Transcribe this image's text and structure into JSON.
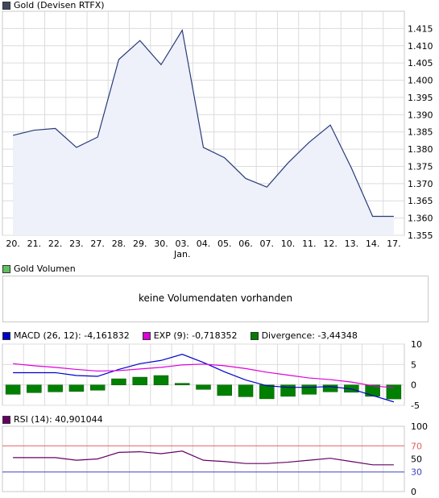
{
  "colors": {
    "gold_line": "#283c78",
    "gold_fill": "#eef0fa",
    "grid": "#dcdcdc",
    "frame": "#c8c8c8",
    "macd": "#0000cc",
    "exp": "#dd00dd",
    "divergence": "#008000",
    "rsi": "#660066",
    "rsi_70": "#e06060",
    "rsi_30": "#4040c0",
    "gold_swatch": "#404860",
    "vol_swatch": "#60c060",
    "rsi_swatch": "#660066"
  },
  "price_panel": {
    "legend": "Gold (Devisen RTFX)",
    "month_label": "Jan."
  },
  "volume_panel": {
    "legend": "Gold Volumen",
    "message": "keine Volumendaten vorhanden"
  },
  "macd_panel": {
    "macd_legend": "MACD (26, 12): -4,161832",
    "exp_legend": "EXP (9): -0,718352",
    "div_legend": "Divergence: -3,44348"
  },
  "rsi_panel": {
    "legend": "RSI (14): 40,901044"
  },
  "chart_data": [
    {
      "type": "area",
      "title": "Gold (Devisen RTFX)",
      "categories": [
        "20.",
        "21.",
        "22.",
        "23.",
        "27.",
        "28.",
        "29.",
        "30.",
        "03.",
        "04.",
        "05.",
        "06.",
        "07.",
        "10.",
        "11.",
        "12.",
        "13.",
        "14.",
        "17."
      ],
      "series": [
        {
          "name": "Gold (Devisen RTFX)",
          "values": [
            1.384,
            1.3855,
            1.386,
            1.3805,
            1.3835,
            1.406,
            1.4115,
            1.4045,
            1.4145,
            1.3805,
            1.3775,
            1.3715,
            1.369,
            1.376,
            1.382,
            1.387,
            1.3745,
            1.3605,
            1.3605
          ]
        }
      ],
      "ylim": [
        1.355,
        1.42
      ],
      "y_ticks": [
        "1.355",
        "1.360",
        "1.365",
        "1.370",
        "1.375",
        "1.380",
        "1.385",
        "1.390",
        "1.395",
        "1.400",
        "1.405",
        "1.410",
        "1.415"
      ],
      "x_group_label": "Jan.",
      "grid": true
    },
    {
      "type": "line",
      "title": "MACD",
      "categories": [
        "20.",
        "21.",
        "22.",
        "23.",
        "27.",
        "28.",
        "29.",
        "30.",
        "03.",
        "04.",
        "05.",
        "06.",
        "07.",
        "10.",
        "11.",
        "12.",
        "13.",
        "14.",
        "17."
      ],
      "series": [
        {
          "name": "MACD (26, 12): -4,161832",
          "values": [
            3,
            3,
            3,
            2.3,
            2.1,
            3.8,
            5.2,
            6,
            7.5,
            5.5,
            3.2,
            1.2,
            -0.2,
            -0.6,
            -0.6,
            -0.4,
            -1,
            -2.6,
            -4.16
          ]
        },
        {
          "name": "EXP (9): -0,718352",
          "values": [
            5.2,
            4.7,
            4.3,
            3.8,
            3.4,
            3.5,
            3.9,
            4.3,
            4.9,
            5.1,
            4.7,
            4,
            3.1,
            2.4,
            1.7,
            1.3,
            0.7,
            -0.2,
            -0.72
          ]
        },
        {
          "name": "Divergence: -3,44348",
          "values": [
            -2.3,
            -1.9,
            -1.7,
            -1.6,
            -1.3,
            1.5,
            1.9,
            2.3,
            0.4,
            -1.1,
            -2.6,
            -2.9,
            -3.4,
            -2.8,
            -2.3,
            -1.7,
            -1.8,
            -2.8,
            -3.44
          ]
        }
      ],
      "ylim": [
        -5,
        10
      ],
      "y_ticks": [
        "10",
        "5",
        "0",
        "-5"
      ],
      "grid": true
    },
    {
      "type": "line",
      "title": "RSI",
      "categories": [
        "20.",
        "21.",
        "22.",
        "23.",
        "27.",
        "28.",
        "29.",
        "30.",
        "03.",
        "04.",
        "05.",
        "06.",
        "07.",
        "10.",
        "11.",
        "12.",
        "13.",
        "14.",
        "17."
      ],
      "series": [
        {
          "name": "RSI (14): 40,901044",
          "values": [
            52,
            52,
            52,
            48,
            50,
            60,
            61,
            58,
            62,
            48,
            46,
            43,
            43,
            45,
            48,
            51,
            46,
            41,
            41
          ]
        }
      ],
      "ylim": [
        0,
        100
      ],
      "y_ticks": [
        "100",
        "70",
        "50",
        "30",
        "0"
      ],
      "reference_lines": [
        70,
        30
      ],
      "grid": true
    }
  ]
}
